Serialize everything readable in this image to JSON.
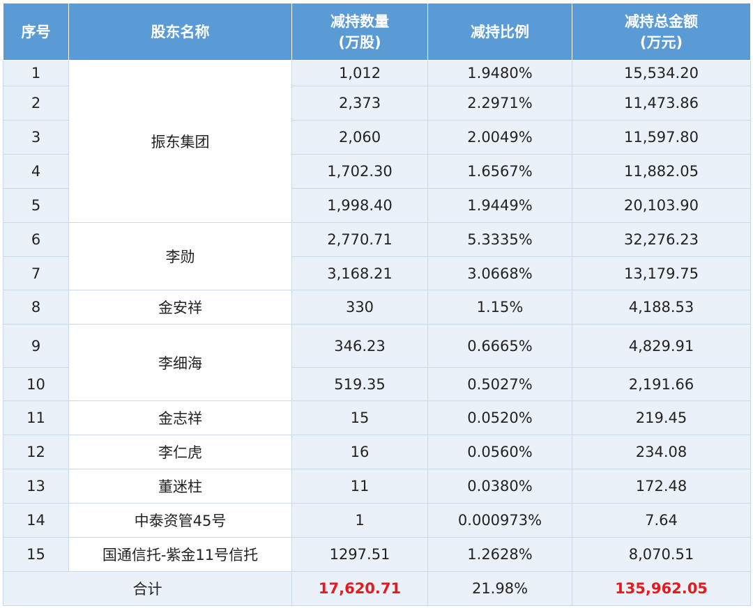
{
  "headers": {
    "index": "序号",
    "holder": "股东名称",
    "qty_line1": "减持数量",
    "qty_line2": "(万股)",
    "ratio": "减持比例",
    "amount_line1": "减持总金额",
    "amount_line2": "(万元)"
  },
  "holders": {
    "g1": "振东集团",
    "g2": "李勋",
    "g3": "金安祥",
    "g4": "李细海",
    "g5": "金志祥",
    "g6": "李仁虎",
    "g7": "董迷柱",
    "g8": "中泰资管45号",
    "g9": "国通信托-紫金11号信托"
  },
  "rows": [
    {
      "idx": "1",
      "qty": "1,012",
      "ratio": "1.9480%",
      "amount": "15,534.20"
    },
    {
      "idx": "2",
      "qty": "2,373",
      "ratio": "2.2971%",
      "amount": "11,473.86"
    },
    {
      "idx": "3",
      "qty": "2,060",
      "ratio": "2.0049%",
      "amount": "11,597.80"
    },
    {
      "idx": "4",
      "qty": "1,702.30",
      "ratio": "1.6567%",
      "amount": "11,882.05"
    },
    {
      "idx": "5",
      "qty": "1,998.40",
      "ratio": "1.9449%",
      "amount": "20,103.90"
    },
    {
      "idx": "6",
      "qty": "2,770.71",
      "ratio": "5.3335%",
      "amount": "32,276.23"
    },
    {
      "idx": "7",
      "qty": "3,168.21",
      "ratio": "3.0668%",
      "amount": "13,179.75"
    },
    {
      "idx": "8",
      "qty": "330",
      "ratio": "1.15%",
      "amount": "4,188.53"
    },
    {
      "idx": "9",
      "qty": "346.23",
      "ratio": "0.6665%",
      "amount": "4,829.91"
    },
    {
      "idx": "10",
      "qty": "519.35",
      "ratio": "0.5027%",
      "amount": "2,191.66"
    },
    {
      "idx": "11",
      "qty": "15",
      "ratio": "0.0520%",
      "amount": "219.45"
    },
    {
      "idx": "12",
      "qty": "16",
      "ratio": "0.0560%",
      "amount": "234.08"
    },
    {
      "idx": "13",
      "qty": "11",
      "ratio": "0.0380%",
      "amount": "172.48"
    },
    {
      "idx": "14",
      "qty": "1",
      "ratio": "0.000973%",
      "amount": "7.64"
    },
    {
      "idx": "15",
      "qty": "1297.51",
      "ratio": "1.2628%",
      "amount": "8,070.51"
    }
  ],
  "total": {
    "label": "合计",
    "qty": "17,620.71",
    "ratio": "21.98%",
    "amount": "135,962.05"
  },
  "colors": {
    "header_bg": "#5b9bd5",
    "row_bg": "#eaf1f9",
    "highlight": "#e8191e"
  }
}
